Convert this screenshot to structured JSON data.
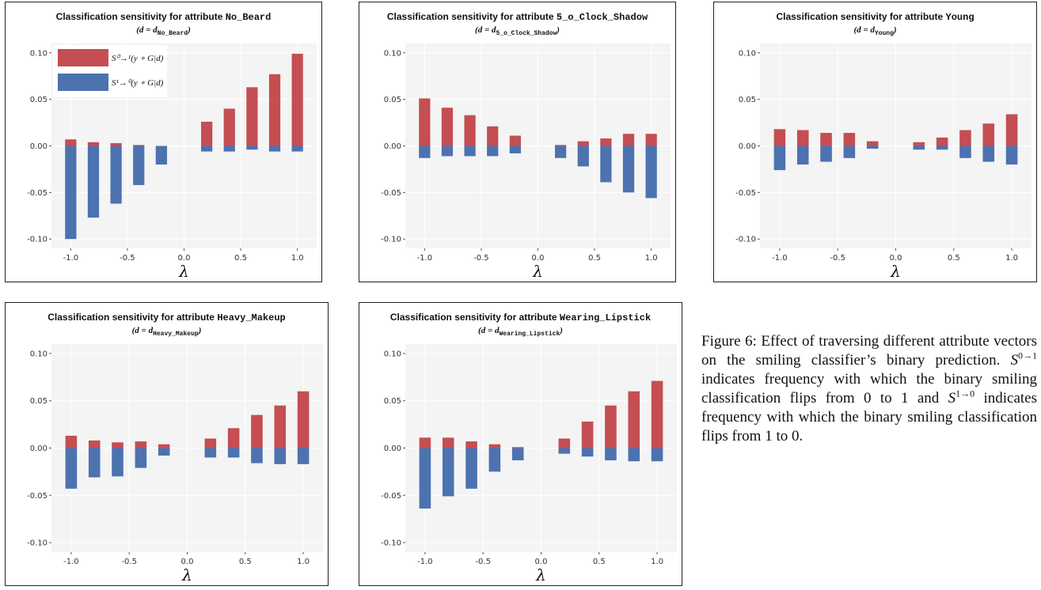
{
  "caption": {
    "label": "Figure 6:",
    "part1": "Effect of traversing different attribute vectors on the smiling classifier’s binary prediction.",
    "s_symbol": "S",
    "sup_01": "0→1",
    "part2": "indicates frequency with which the binary smiling classification flips from 0 to 1 and",
    "sup_10": "1→0",
    "part3": "indicates frequency with which the binary smiling classification flips from 1 to 0."
  },
  "legend": {
    "s01": "S⁰→¹(y ∘ G|d)",
    "s10": "S¹→⁰(y ∘ G|d)"
  },
  "colors": {
    "s01": "#c44e52",
    "s10": "#4c72b0",
    "panel_bg": "#f4f4f4",
    "grid": "#ffffff"
  },
  "chart_data": [
    {
      "type": "bar",
      "title_prefix": "Classification sensitivity for attribute ",
      "attribute": "No_Beard",
      "subtitle": "(d = d",
      "subtitle_sub": "No_Beard",
      "subtitle_end": ")",
      "xlabel": "λ",
      "x": [
        -1.0,
        -0.8,
        -0.6,
        -0.4,
        -0.2,
        0.2,
        0.4,
        0.6,
        0.8,
        1.0
      ],
      "xticks": [
        "-1.0",
        "-0.5",
        "0.0",
        "0.5",
        "1.0"
      ],
      "yticks": [
        "0.10",
        "0.05",
        "0.00",
        "-0.05",
        "-0.10"
      ],
      "ylim": [
        -0.11,
        0.11
      ],
      "series": [
        {
          "name": "S0→1(y∘G|d)",
          "values": [
            0.007,
            0.004,
            0.003,
            0.001,
            0.0,
            0.026,
            0.04,
            0.063,
            0.077,
            0.099
          ]
        },
        {
          "name": "S1→0(y∘G|d)",
          "values": [
            -0.1,
            -0.077,
            -0.062,
            -0.042,
            -0.02,
            -0.006,
            -0.006,
            -0.004,
            -0.006,
            -0.006
          ]
        }
      ],
      "legend": true
    },
    {
      "type": "bar",
      "title_prefix": "Classification sensitivity for attribute ",
      "attribute": "5_o_Clock_Shadow",
      "subtitle": "(d = d",
      "subtitle_sub": "5_o_Clock_Shadow",
      "subtitle_end": ")",
      "xlabel": "λ",
      "x": [
        -1.0,
        -0.8,
        -0.6,
        -0.4,
        -0.2,
        0.2,
        0.4,
        0.6,
        0.8,
        1.0
      ],
      "xticks": [
        "-1.0",
        "-0.5",
        "0.0",
        "0.5",
        "1.0"
      ],
      "yticks": [
        "0.10",
        "0.05",
        "0.00",
        "-0.05",
        "-0.10"
      ],
      "ylim": [
        -0.11,
        0.11
      ],
      "series": [
        {
          "name": "S0→1(y∘G|d)",
          "values": [
            0.051,
            0.041,
            0.033,
            0.021,
            0.011,
            0.001,
            0.005,
            0.008,
            0.013,
            0.013
          ]
        },
        {
          "name": "S1→0(y∘G|d)",
          "values": [
            -0.013,
            -0.011,
            -0.011,
            -0.011,
            -0.008,
            -0.013,
            -0.022,
            -0.039,
            -0.05,
            -0.056
          ]
        }
      ],
      "legend": false
    },
    {
      "type": "bar",
      "title_prefix": "Classification sensitivity for attribute ",
      "attribute": "Young",
      "subtitle": "(d = d",
      "subtitle_sub": "Young",
      "subtitle_end": ")",
      "xlabel": "λ",
      "x": [
        -1.0,
        -0.8,
        -0.6,
        -0.4,
        -0.2,
        0.2,
        0.4,
        0.6,
        0.8,
        1.0
      ],
      "xticks": [
        "-1.0",
        "-0.5",
        "0.0",
        "0.5",
        "1.0"
      ],
      "yticks": [
        "0.10",
        "0.05",
        "0.00",
        "-0.05",
        "-0.10"
      ],
      "ylim": [
        -0.11,
        0.11
      ],
      "series": [
        {
          "name": "S0→1(y∘G|d)",
          "values": [
            0.018,
            0.017,
            0.014,
            0.014,
            0.005,
            0.004,
            0.009,
            0.017,
            0.024,
            0.034
          ]
        },
        {
          "name": "S1→0(y∘G|d)",
          "values": [
            -0.026,
            -0.02,
            -0.017,
            -0.013,
            -0.003,
            -0.004,
            -0.004,
            -0.013,
            -0.017,
            -0.02
          ]
        }
      ],
      "legend": false
    },
    {
      "type": "bar",
      "title_prefix": "Classification sensitivity for attribute ",
      "attribute": "Heavy_Makeup",
      "subtitle": "(d = d",
      "subtitle_sub": "Heavy_Makeup",
      "subtitle_end": ")",
      "xlabel": "λ",
      "x": [
        -1.0,
        -0.8,
        -0.6,
        -0.4,
        -0.2,
        0.2,
        0.4,
        0.6,
        0.8,
        1.0
      ],
      "xticks": [
        "-1.0",
        "-0.5",
        "0.0",
        "0.5",
        "1.0"
      ],
      "yticks": [
        "0.10",
        "0.05",
        "0.00",
        "-0.05",
        "-0.10"
      ],
      "ylim": [
        -0.11,
        0.11
      ],
      "series": [
        {
          "name": "S0→1(y∘G|d)",
          "values": [
            0.013,
            0.008,
            0.006,
            0.007,
            0.004,
            0.01,
            0.021,
            0.035,
            0.045,
            0.06
          ]
        },
        {
          "name": "S1→0(y∘G|d)",
          "values": [
            -0.043,
            -0.031,
            -0.03,
            -0.021,
            -0.008,
            -0.01,
            -0.01,
            -0.016,
            -0.017,
            -0.017
          ]
        }
      ],
      "legend": false
    },
    {
      "type": "bar",
      "title_prefix": "Classification sensitivity for attribute ",
      "attribute": "Wearing_Lipstick",
      "subtitle": "(d = d",
      "subtitle_sub": "Wearing_Lipstick",
      "subtitle_end": ")",
      "xlabel": "λ",
      "x": [
        -1.0,
        -0.8,
        -0.6,
        -0.4,
        -0.2,
        0.2,
        0.4,
        0.6,
        0.8,
        1.0
      ],
      "xticks": [
        "-1.0",
        "-0.5",
        "0.0",
        "0.5",
        "1.0"
      ],
      "yticks": [
        "0.10",
        "0.05",
        "0.00",
        "-0.05",
        "-0.10"
      ],
      "ylim": [
        -0.11,
        0.11
      ],
      "series": [
        {
          "name": "S0→1(y∘G|d)",
          "values": [
            0.011,
            0.011,
            0.007,
            0.004,
            0.001,
            0.01,
            0.028,
            0.045,
            0.06,
            0.071
          ]
        },
        {
          "name": "S1→0(y∘G|d)",
          "values": [
            -0.064,
            -0.051,
            -0.043,
            -0.025,
            -0.013,
            -0.006,
            -0.009,
            -0.013,
            -0.014,
            -0.014
          ]
        }
      ],
      "legend": false
    }
  ]
}
